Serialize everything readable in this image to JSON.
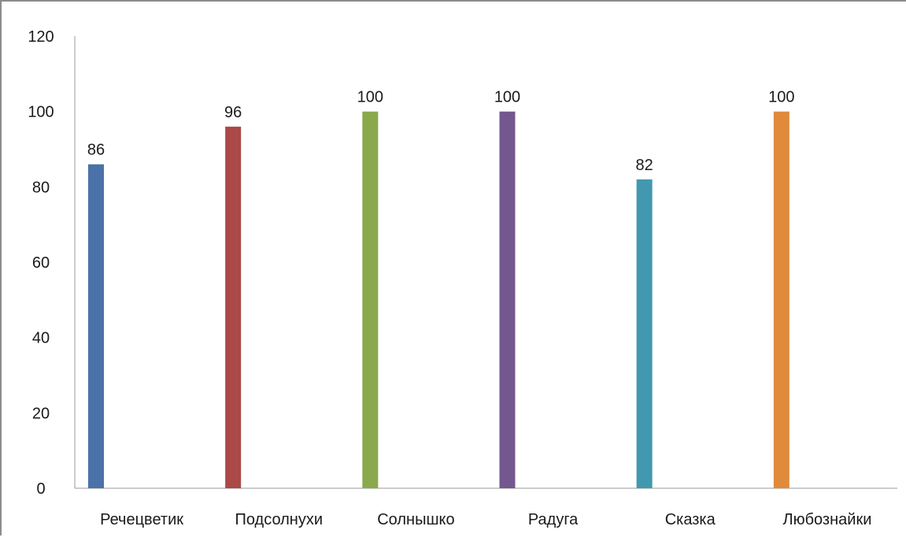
{
  "chart_data": {
    "type": "bar",
    "categories": [
      "Речецветик",
      "Подсолнухи",
      "Солнышко",
      "Радуга",
      "Сказка",
      "Любознайки"
    ],
    "values": [
      86,
      96,
      100,
      100,
      82,
      100
    ],
    "colors": [
      "#4a72a8",
      "#ab4848",
      "#8aa94d",
      "#73578f",
      "#4298ae",
      "#e08a3c"
    ],
    "ylim": [
      0,
      120
    ],
    "yticks": [
      0,
      20,
      40,
      60,
      80,
      100,
      120
    ],
    "grid": false,
    "legend": "none",
    "data_labels": true
  }
}
